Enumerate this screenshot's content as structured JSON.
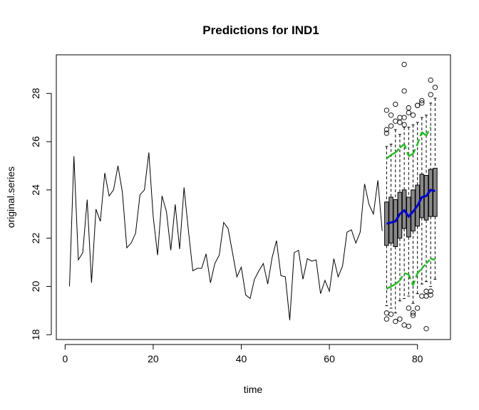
{
  "chart_data": {
    "type": "line",
    "title": "Predictions for IND1",
    "xlabel": "time",
    "ylabel": "original.series",
    "xlim": [
      -2,
      87.5
    ],
    "ylim": [
      17.8,
      29.6
    ],
    "xticks": [
      0,
      20,
      40,
      60,
      80
    ],
    "yticks": [
      18,
      20,
      22,
      24,
      26,
      28
    ],
    "grid": false,
    "legend": "none",
    "colors": {
      "series": "#000000",
      "median": "#0000cc",
      "bounds": "#22bb22",
      "box": "#888888"
    },
    "series": [
      {
        "type": "line",
        "x": [
          1,
          2,
          3,
          4,
          5,
          6,
          7,
          8,
          9,
          10,
          11,
          12,
          13,
          14,
          15,
          16,
          17,
          18,
          19,
          20,
          21,
          22,
          23,
          24,
          25,
          26,
          27,
          28,
          29,
          30,
          31,
          32,
          33,
          34,
          35,
          36,
          37,
          38,
          39,
          40,
          41,
          42,
          43,
          44,
          45,
          46,
          47,
          48,
          49,
          50,
          51,
          52,
          53,
          54,
          55,
          56,
          57,
          58,
          59,
          60,
          61,
          62,
          63,
          64,
          65,
          66,
          67,
          68,
          69,
          70,
          71,
          72
        ],
        "values": [
          20.0,
          25.4,
          21.1,
          21.4,
          23.6,
          20.15,
          23.2,
          22.7,
          24.7,
          23.75,
          24.0,
          25.0,
          23.9,
          21.6,
          21.8,
          22.2,
          23.8,
          24.0,
          25.55,
          22.9,
          21.3,
          23.75,
          23.1,
          21.5,
          23.4,
          21.55,
          24.1,
          22.3,
          20.65,
          20.75,
          20.75,
          21.35,
          20.15,
          20.95,
          21.3,
          22.65,
          22.4,
          21.4,
          20.4,
          20.8,
          19.65,
          19.5,
          20.3,
          20.65,
          20.95,
          20.1,
          21.2,
          21.9,
          20.45,
          20.4,
          18.6,
          21.4,
          21.5,
          20.3,
          21.15,
          21.05,
          21.1,
          19.7,
          20.25,
          19.8,
          21.15,
          20.4,
          20.85,
          22.25,
          22.35,
          21.8,
          22.25,
          24.25,
          23.4,
          23.0,
          24.4,
          22.3
        ]
      }
    ],
    "predictions": {
      "x": [
        73,
        74,
        75,
        76,
        77,
        78,
        79,
        80,
        81,
        82,
        83,
        84
      ],
      "median": [
        22.6,
        22.65,
        22.7,
        23.0,
        23.15,
        22.9,
        23.1,
        23.35,
        23.7,
        23.75,
        24.0,
        23.95
      ],
      "upper_bound": [
        25.3,
        25.45,
        25.55,
        25.75,
        25.9,
        25.4,
        25.5,
        25.9,
        26.4,
        26.25,
        26.6,
        null
      ],
      "lower_bound": [
        19.9,
        20.0,
        20.1,
        20.25,
        20.55,
        20.5,
        20.05,
        20.55,
        20.75,
        20.95,
        21.15,
        21.1
      ],
      "boxes": [
        {
          "x": 73,
          "q1": 21.7,
          "q3": 23.5,
          "wlo": 19.2,
          "whi": 25.8,
          "outliers": [
            18.65,
            18.9,
            26.35,
            26.5,
            27.3
          ]
        },
        {
          "x": 74,
          "q1": 21.8,
          "q3": 23.7,
          "wlo": 19.1,
          "whi": 25.9,
          "outliers": [
            18.85,
            26.65,
            27.1
          ]
        },
        {
          "x": 75,
          "q1": 21.65,
          "q3": 23.6,
          "wlo": 18.9,
          "whi": 26.5,
          "outliers": [
            18.55,
            26.85,
            27.55
          ]
        },
        {
          "x": 76,
          "q1": 22.0,
          "q3": 23.9,
          "wlo": 19.4,
          "whi": 26.3,
          "outliers": [
            18.65,
            26.8,
            27.0
          ]
        },
        {
          "x": 77,
          "q1": 22.4,
          "q3": 24.0,
          "wlo": 19.5,
          "whi": 26.6,
          "outliers": [
            18.4,
            26.7,
            27.0,
            28.1,
            29.2
          ]
        },
        {
          "x": 78,
          "q1": 22.05,
          "q3": 23.7,
          "wlo": 19.6,
          "whi": 26.6,
          "outliers": [
            18.35,
            19.1,
            27.2,
            27.4
          ]
        },
        {
          "x": 79,
          "q1": 22.3,
          "q3": 24.0,
          "wlo": 19.3,
          "whi": 26.7,
          "outliers": [
            18.8,
            18.9,
            27.1
          ]
        },
        {
          "x": 80,
          "q1": 22.5,
          "q3": 24.2,
          "wlo": 19.7,
          "whi": 26.8,
          "outliers": [
            19.1,
            27.5,
            27.5
          ]
        },
        {
          "x": 81,
          "q1": 22.85,
          "q3": 24.65,
          "wlo": 20.1,
          "whi": 27.0,
          "outliers": [
            19.6,
            27.6,
            27.7
          ]
        },
        {
          "x": 82,
          "q1": 22.75,
          "q3": 24.6,
          "wlo": 20.2,
          "whi": 27.1,
          "outliers": [
            18.25,
            19.6,
            19.8
          ]
        },
        {
          "x": 83,
          "q1": 22.9,
          "q3": 24.85,
          "wlo": 20.0,
          "whi": 27.6,
          "outliers": [
            19.65,
            19.8,
            27.95,
            28.55
          ]
        },
        {
          "x": 84,
          "q1": 22.9,
          "q3": 24.9,
          "wlo": 20.3,
          "whi": 27.8,
          "outliers": [
            28.25
          ]
        }
      ]
    }
  }
}
